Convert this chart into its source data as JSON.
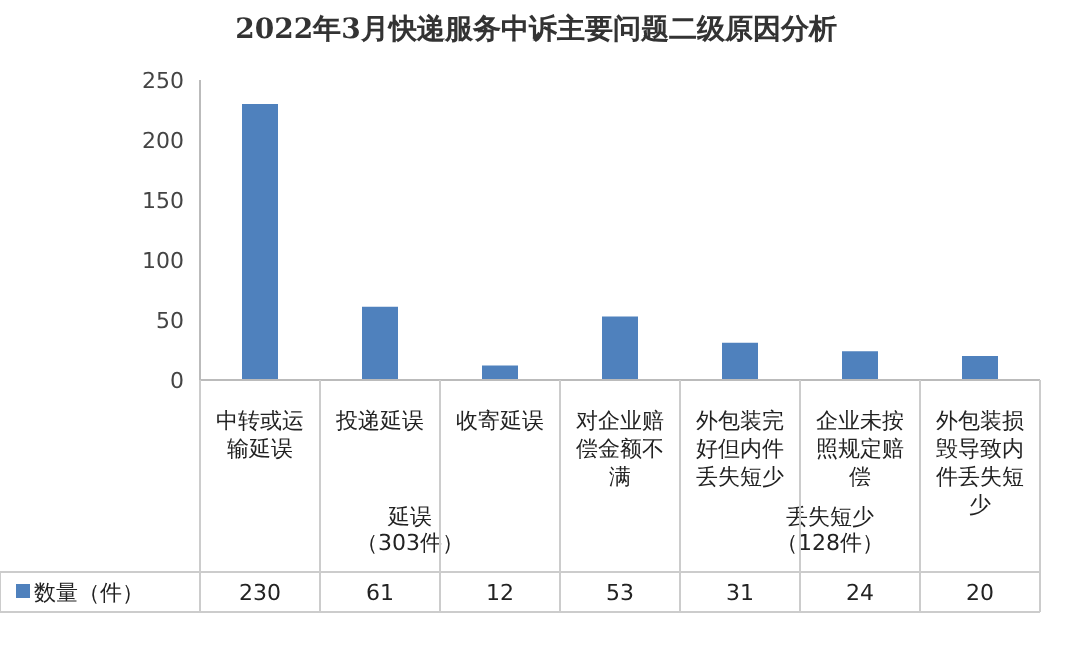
{
  "chart_data": {
    "type": "bar",
    "title": "2022年3月快递服务中诉主要问题二级原因分析",
    "categories": [
      "中转或运输延误",
      "投递延误",
      "收寄延误",
      "对企业赔偿金额不满",
      "外包装完好但内件丢失短少",
      "企业未按照规定赔偿",
      "外包装损毁导致内件丢失短少"
    ],
    "series": [
      {
        "name": "数量（件）",
        "color": "#4f81bd",
        "values": [
          230,
          61,
          12,
          53,
          31,
          24,
          20
        ]
      }
    ],
    "ylim": [
      0,
      250
    ],
    "yticks": [
      0,
      50,
      100,
      150,
      200,
      250
    ],
    "grid": false,
    "legend": "bottom",
    "data_labels": true,
    "annotations": [
      "延误（303件）",
      "丢失短少（128件）"
    ]
  }
}
